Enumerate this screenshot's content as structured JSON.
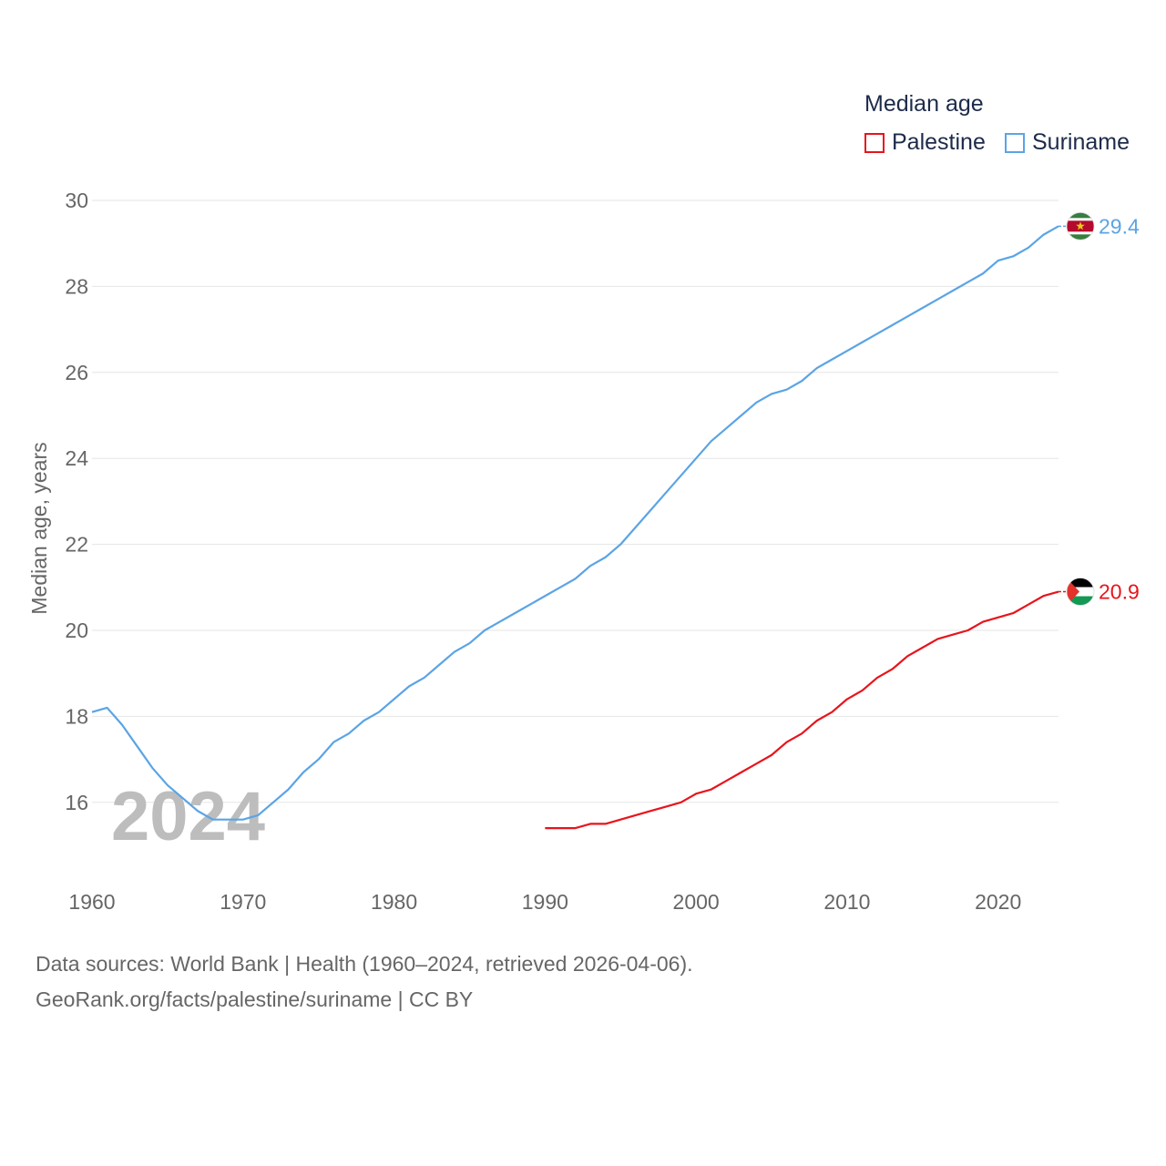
{
  "legend": {
    "title": "Median age",
    "items": [
      {
        "name": "Palestine",
        "color": "#e8141b"
      },
      {
        "name": "Suriname",
        "color": "#5ba4e5"
      }
    ]
  },
  "watermark_year": "2024",
  "footer": {
    "line1": "Data sources: World Bank | Health (1960–2024, retrieved 2026-04-06).",
    "line2": "GeoRank.org/facts/palestine/suriname | CC BY"
  },
  "chart_data": {
    "type": "line",
    "title": "Median age",
    "xlabel": "",
    "ylabel": "Median age, years",
    "xlim": [
      1960,
      2024
    ],
    "ylim": [
      15,
      30
    ],
    "x_ticks": [
      1960,
      1970,
      1980,
      1990,
      2000,
      2010,
      2020
    ],
    "y_ticks": [
      16,
      18,
      20,
      22,
      24,
      26,
      28,
      30
    ],
    "grid": true,
    "legend_position": "top-right",
    "series": [
      {
        "name": "Suriname",
        "color": "#5ba4e5",
        "end_label": "29.4",
        "flag": "suriname-flag",
        "x": [
          1960,
          1961,
          1962,
          1963,
          1964,
          1965,
          1966,
          1967,
          1968,
          1969,
          1970,
          1971,
          1972,
          1973,
          1974,
          1975,
          1976,
          1977,
          1978,
          1979,
          1980,
          1981,
          1982,
          1983,
          1984,
          1985,
          1986,
          1987,
          1988,
          1989,
          1990,
          1991,
          1992,
          1993,
          1994,
          1995,
          1996,
          1997,
          1998,
          1999,
          2000,
          2001,
          2002,
          2003,
          2004,
          2005,
          2006,
          2007,
          2008,
          2009,
          2010,
          2011,
          2012,
          2013,
          2014,
          2015,
          2016,
          2017,
          2018,
          2019,
          2020,
          2021,
          2022,
          2023,
          2024
        ],
        "values": [
          18.1,
          18.2,
          17.8,
          17.3,
          16.8,
          16.4,
          16.1,
          15.8,
          15.6,
          15.6,
          15.6,
          15.7,
          16.0,
          16.3,
          16.7,
          17.0,
          17.4,
          17.6,
          17.9,
          18.1,
          18.4,
          18.7,
          18.9,
          19.2,
          19.5,
          19.7,
          20.0,
          20.2,
          20.4,
          20.6,
          20.8,
          21.0,
          21.2,
          21.5,
          21.7,
          22.0,
          22.4,
          22.8,
          23.2,
          23.6,
          24.0,
          24.4,
          24.7,
          25.0,
          25.3,
          25.5,
          25.6,
          25.8,
          26.1,
          26.3,
          26.5,
          26.7,
          26.9,
          27.1,
          27.3,
          27.5,
          27.7,
          27.9,
          28.1,
          28.3,
          28.6,
          28.7,
          28.9,
          29.2,
          29.4
        ]
      },
      {
        "name": "Palestine",
        "color": "#e8141b",
        "end_label": "20.9",
        "flag": "palestine-flag",
        "x": [
          1990,
          1991,
          1992,
          1993,
          1994,
          1995,
          1996,
          1997,
          1998,
          1999,
          2000,
          2001,
          2002,
          2003,
          2004,
          2005,
          2006,
          2007,
          2008,
          2009,
          2010,
          2011,
          2012,
          2013,
          2014,
          2015,
          2016,
          2017,
          2018,
          2019,
          2020,
          2021,
          2022,
          2023,
          2024
        ],
        "values": [
          15.4,
          15.4,
          15.4,
          15.5,
          15.5,
          15.6,
          15.7,
          15.8,
          15.9,
          16.0,
          16.2,
          16.3,
          16.5,
          16.7,
          16.9,
          17.1,
          17.4,
          17.6,
          17.9,
          18.1,
          18.4,
          18.6,
          18.9,
          19.1,
          19.4,
          19.6,
          19.8,
          19.9,
          20.0,
          20.2,
          20.3,
          20.4,
          20.6,
          20.8,
          20.9
        ]
      }
    ]
  }
}
